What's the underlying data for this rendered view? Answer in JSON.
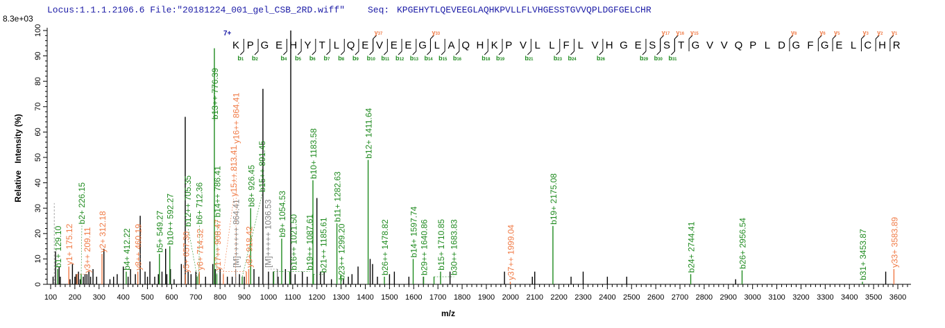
{
  "header": {
    "locus_file": "Locus:1.1.1.2106.6 File:\"20181224_001_gel_CSB_2RD.wiff\"",
    "seq_label": "Seq:",
    "sequence": "KPGEHYTLQEVEEGLAQHKPVLLFLVHGESSTGVVQPLDGFGELCHR"
  },
  "charge_label": "7+",
  "colors": {
    "b_ion": "#1e8a1e",
    "y_ion": "#f07a45",
    "precursor": "#808080",
    "unassigned": "#000000",
    "header": "#1a1aa6"
  },
  "chart_data": {
    "type": "bar",
    "subtype": "mass-spectrum",
    "scale_label": "8.3e+03",
    "xlabel": "m/z",
    "ylabel": "Relative   Intensity (%)",
    "xlim": [
      100,
      3650
    ],
    "ylim": [
      0,
      100
    ],
    "xticks": [
      100,
      200,
      300,
      400,
      500,
      600,
      700,
      800,
      900,
      1000,
      1100,
      1200,
      1300,
      1400,
      1500,
      1600,
      1700,
      1800,
      1900,
      2000,
      2100,
      2200,
      2300,
      2400,
      2500,
      2600,
      2700,
      2800,
      2900,
      3000,
      3100,
      3200,
      3300,
      3400,
      3500,
      3600
    ],
    "yticks": [
      0,
      10,
      20,
      30,
      40,
      50,
      60,
      70,
      80,
      90,
      100
    ],
    "grid": false,
    "annotated_peaks": [
      {
        "mz": 129.1,
        "intensity": 6,
        "ion": "b",
        "label": "b1+ 129.10"
      },
      {
        "mz": 175.12,
        "intensity": 7,
        "ion": "y",
        "label": "y1+ 175.12"
      },
      {
        "mz": 209.11,
        "intensity": 4,
        "ion": "y",
        "label": "y3++ 209.11"
      },
      {
        "mz": 226.15,
        "intensity": 4,
        "ion": "b",
        "label": "b2+ 226.15"
      },
      {
        "mz": 312.18,
        "intensity": 12,
        "ion": "y",
        "label": "y2+ 312.18"
      },
      {
        "mz": 412.22,
        "intensity": 5,
        "ion": "b",
        "label": "b4+ 412.22"
      },
      {
        "mz": 460.19,
        "intensity": 5,
        "ion": "y",
        "label": "y8++ 460.19"
      },
      {
        "mz": 549.27,
        "intensity": 12,
        "ion": "b",
        "label": "b5+ 549.27"
      },
      {
        "mz": 592.27,
        "intensity": 15,
        "ion": "b",
        "label": "b10++ 592.27"
      },
      {
        "mz": 657.3,
        "intensity": 4,
        "ion": "y",
        "label": "y5+ 657.30"
      },
      {
        "mz": 705.35,
        "intensity": 3,
        "ion": "b",
        "label": "b12++ 705.35"
      },
      {
        "mz": 712.36,
        "intensity": 4,
        "ion": "b",
        "label": "b6+ 712.36"
      },
      {
        "mz": 714.32,
        "intensity": 5,
        "ion": "y",
        "label": "y6+ 714.32"
      },
      {
        "mz": 776.39,
        "intensity": 93,
        "ion": "b",
        "label": "b13++ 776.39"
      },
      {
        "mz": 786.41,
        "intensity": 4,
        "ion": "b",
        "label": "b14++ 786.41"
      },
      {
        "mz": 813.41,
        "intensity": 4,
        "ion": "y",
        "label": "y15++ 813.41"
      },
      {
        "mz": 864.41,
        "intensity": 3,
        "ion": "y",
        "label": "y16++ 864.41"
      },
      {
        "mz": 864.41,
        "intensity": 6,
        "ion": "M",
        "label": "[M]++++++ 864.41"
      },
      {
        "mz": 891.45,
        "intensity": 3,
        "ion": "b",
        "label": "b15++ 891.45"
      },
      {
        "mz": 908.47,
        "intensity": 5,
        "ion": "y",
        "label": "y17++ 908.47"
      },
      {
        "mz": 918.42,
        "intensity": 6,
        "ion": "y",
        "label": "y8+ 918.42"
      },
      {
        "mz": 926.45,
        "intensity": 30,
        "ion": "b",
        "label": "b8+ 926.45"
      },
      {
        "mz": 1021.5,
        "intensity": 5,
        "ion": "b",
        "label": "b16++ 1021.50"
      },
      {
        "mz": 1036.53,
        "intensity": 6,
        "ion": "M",
        "label": "[M]+++++ 1036.53"
      },
      {
        "mz": 1054.53,
        "intensity": 18,
        "ion": "b",
        "label": "b9+ 1054.53"
      },
      {
        "mz": 1087.61,
        "intensity": 5,
        "ion": "b",
        "label": "b19++ 1087.61"
      },
      {
        "mz": 1183.58,
        "intensity": 41,
        "ion": "b",
        "label": "b10+ 1183.58"
      },
      {
        "mz": 1185.61,
        "intensity": 4,
        "ion": "b",
        "label": "b21++ 1185.61"
      },
      {
        "mz": 1282.63,
        "intensity": 24,
        "ion": "b",
        "label": "b11+ 1282.63"
      },
      {
        "mz": 1299.2,
        "intensity": 4,
        "ion": "b",
        "label": "b23++ 1299.20"
      },
      {
        "mz": 1411.64,
        "intensity": 49,
        "ion": "b",
        "label": "b12+ 1411.64"
      },
      {
        "mz": 1478.82,
        "intensity": 3,
        "ion": "b",
        "label": "b26++ 1478.82"
      },
      {
        "mz": 1597.74,
        "intensity": 10,
        "ion": "b",
        "label": "b14+ 1597.74"
      },
      {
        "mz": 1640.86,
        "intensity": 3,
        "ion": "b",
        "label": "b29++ 1640.86"
      },
      {
        "mz": 1683.83,
        "intensity": 3,
        "ion": "b",
        "label": "b30++ 1683.83"
      },
      {
        "mz": 1710.85,
        "intensity": 5,
        "ion": "b",
        "label": "b15+ 1710.85"
      },
      {
        "mz": 1999.04,
        "intensity": 1,
        "ion": "y",
        "label": "y37++ 1999.04"
      },
      {
        "mz": 2175.08,
        "intensity": 23,
        "ion": "b",
        "label": "b19+ 2175.08"
      },
      {
        "mz": 2744.41,
        "intensity": 4,
        "ion": "b",
        "label": "b24+ 2744.41"
      },
      {
        "mz": 2956.54,
        "intensity": 5.5,
        "ion": "b",
        "label": "b26+ 2956.54"
      },
      {
        "mz": 3453.87,
        "intensity": 1,
        "ion": "b",
        "label": "b31+ 3453.87"
      },
      {
        "mz": 3583.89,
        "intensity": 6,
        "ion": "y",
        "label": "y33+ 3583.89"
      }
    ],
    "precursor_marker": {
      "mz": 115,
      "intensity": 32
    },
    "unassigned_peaks": [
      [
        110,
        3
      ],
      [
        120,
        13
      ],
      [
        135,
        7
      ],
      [
        140,
        3
      ],
      [
        180,
        2
      ],
      [
        190,
        8
      ],
      [
        200,
        3
      ],
      [
        205,
        4
      ],
      [
        215,
        5
      ],
      [
        222,
        2
      ],
      [
        235,
        3
      ],
      [
        242,
        4
      ],
      [
        250,
        4
      ],
      [
        258,
        5
      ],
      [
        265,
        3
      ],
      [
        275,
        6
      ],
      [
        290,
        3
      ],
      [
        320,
        14
      ],
      [
        345,
        2
      ],
      [
        360,
        3
      ],
      [
        375,
        4
      ],
      [
        400,
        7
      ],
      [
        420,
        3
      ],
      [
        430,
        6
      ],
      [
        450,
        4
      ],
      [
        470,
        27
      ],
      [
        490,
        5
      ],
      [
        500,
        3
      ],
      [
        510,
        9
      ],
      [
        530,
        3
      ],
      [
        545,
        4
      ],
      [
        560,
        5
      ],
      [
        575,
        14
      ],
      [
        580,
        4
      ],
      [
        595,
        6
      ],
      [
        610,
        2
      ],
      [
        640,
        8
      ],
      [
        656,
        66
      ],
      [
        668,
        5
      ],
      [
        680,
        4
      ],
      [
        700,
        5
      ],
      [
        740,
        3
      ],
      [
        770,
        8
      ],
      [
        780,
        6
      ],
      [
        800,
        6
      ],
      [
        830,
        3
      ],
      [
        850,
        3
      ],
      [
        880,
        4
      ],
      [
        900,
        3
      ],
      [
        940,
        6
      ],
      [
        960,
        3
      ],
      [
        977,
        77
      ],
      [
        1000,
        5
      ],
      [
        1020,
        5
      ],
      [
        1040,
        3
      ],
      [
        1070,
        6
      ],
      [
        1092,
        100
      ],
      [
        1110,
        4
      ],
      [
        1140,
        5
      ],
      [
        1160,
        3
      ],
      [
        1200,
        34
      ],
      [
        1215,
        5
      ],
      [
        1230,
        5
      ],
      [
        1260,
        2
      ],
      [
        1310,
        2
      ],
      [
        1330,
        3
      ],
      [
        1345,
        4
      ],
      [
        1370,
        7
      ],
      [
        1420,
        10
      ],
      [
        1430,
        8
      ],
      [
        1450,
        3
      ],
      [
        1500,
        4
      ],
      [
        1520,
        5
      ],
      [
        1580,
        3
      ],
      [
        1640,
        3
      ],
      [
        1750,
        5
      ],
      [
        1975,
        5
      ],
      [
        2090,
        3
      ],
      [
        2100,
        5
      ],
      [
        2250,
        3
      ],
      [
        2300,
        5
      ],
      [
        2400,
        3
      ],
      [
        2480,
        3
      ],
      [
        2930,
        2
      ],
      [
        3550,
        5
      ]
    ],
    "fragment_map": {
      "b": [
        1,
        2,
        4,
        5,
        6,
        7,
        8,
        9,
        10,
        11,
        12,
        13,
        14,
        15,
        16,
        18,
        19,
        21,
        23,
        24,
        26,
        29,
        30,
        31
      ],
      "y": [
        37,
        33,
        17,
        16,
        15,
        8,
        6,
        5,
        3,
        2,
        1
      ]
    }
  }
}
